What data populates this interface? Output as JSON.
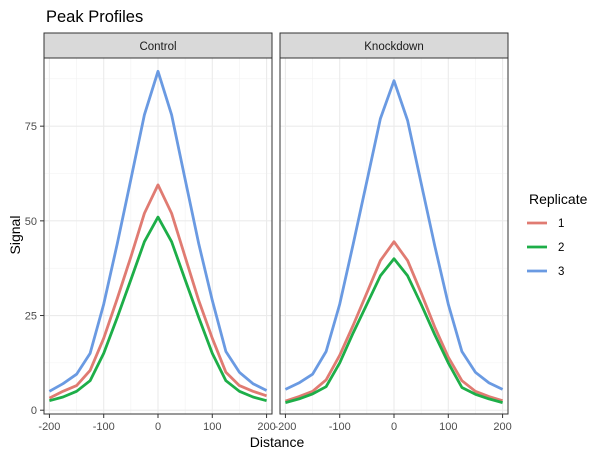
{
  "chart_data": {
    "type": "line",
    "title": "Peak Profiles",
    "xlabel": "Distance",
    "ylabel": "Signal",
    "xlim": [
      -210,
      210
    ],
    "ylim": [
      -1,
      93
    ],
    "x_ticks": [
      -200,
      -100,
      0,
      100,
      200
    ],
    "x_tick_labels": [
      "-200",
      "-100",
      "0",
      "100",
      "200"
    ],
    "y_ticks": [
      0,
      25,
      50,
      75
    ],
    "y_tick_labels": [
      "0",
      "25",
      "50",
      "75"
    ],
    "grid": true,
    "legend": {
      "title": "Replicate",
      "position": "right"
    },
    "series_styles": [
      {
        "name": "1",
        "color": "#E07B72"
      },
      {
        "name": "2",
        "color": "#1DAE48"
      },
      {
        "name": "3",
        "color": "#6A9AE2"
      }
    ],
    "x": [
      -200,
      -175,
      -150,
      -125,
      -100,
      -75,
      -50,
      -25,
      0,
      25,
      50,
      75,
      100,
      125,
      150,
      175,
      200
    ],
    "panels": [
      {
        "label": "Control",
        "series": [
          {
            "name": "1",
            "values": [
              3.2,
              5,
              6.5,
              10.5,
              19,
              29.5,
              40.5,
              52,
              59.5,
              52,
              40.5,
              29,
              19,
              10,
              6.5,
              5,
              3.8
            ]
          },
          {
            "name": "2",
            "values": [
              2.5,
              3.5,
              5,
              7.8,
              15,
              24.5,
              34.5,
              44.5,
              51,
              44.5,
              34.5,
              24.5,
              15,
              7.8,
              5,
              3.5,
              2.5
            ]
          },
          {
            "name": "3",
            "values": [
              5,
              7,
              9.5,
              15,
              28,
              44,
              61,
              78,
              89.5,
              78,
              61,
              44,
              29,
              15.5,
              10,
              7,
              5.2
            ]
          }
        ]
      },
      {
        "label": "Knockdown",
        "series": [
          {
            "name": "1",
            "values": [
              2.4,
              3.6,
              5,
              8,
              14.5,
              22.5,
              31,
              39.5,
              44.5,
              39.5,
              31,
              22,
              14,
              7.8,
              5,
              3.6,
              2.5
            ]
          },
          {
            "name": "2",
            "values": [
              2,
              3,
              4.3,
              6.2,
              12.5,
              20.5,
              28,
              35.5,
              40,
              35.5,
              28,
              20,
              12.5,
              6,
              4.2,
              3,
              2
            ]
          },
          {
            "name": "3",
            "values": [
              5.5,
              7.2,
              9.5,
              15.5,
              28,
              44,
              60.5,
              77,
              87,
              76.5,
              60,
              43.5,
              28,
              15.5,
              10,
              7.2,
              5.5
            ]
          }
        ]
      }
    ]
  }
}
